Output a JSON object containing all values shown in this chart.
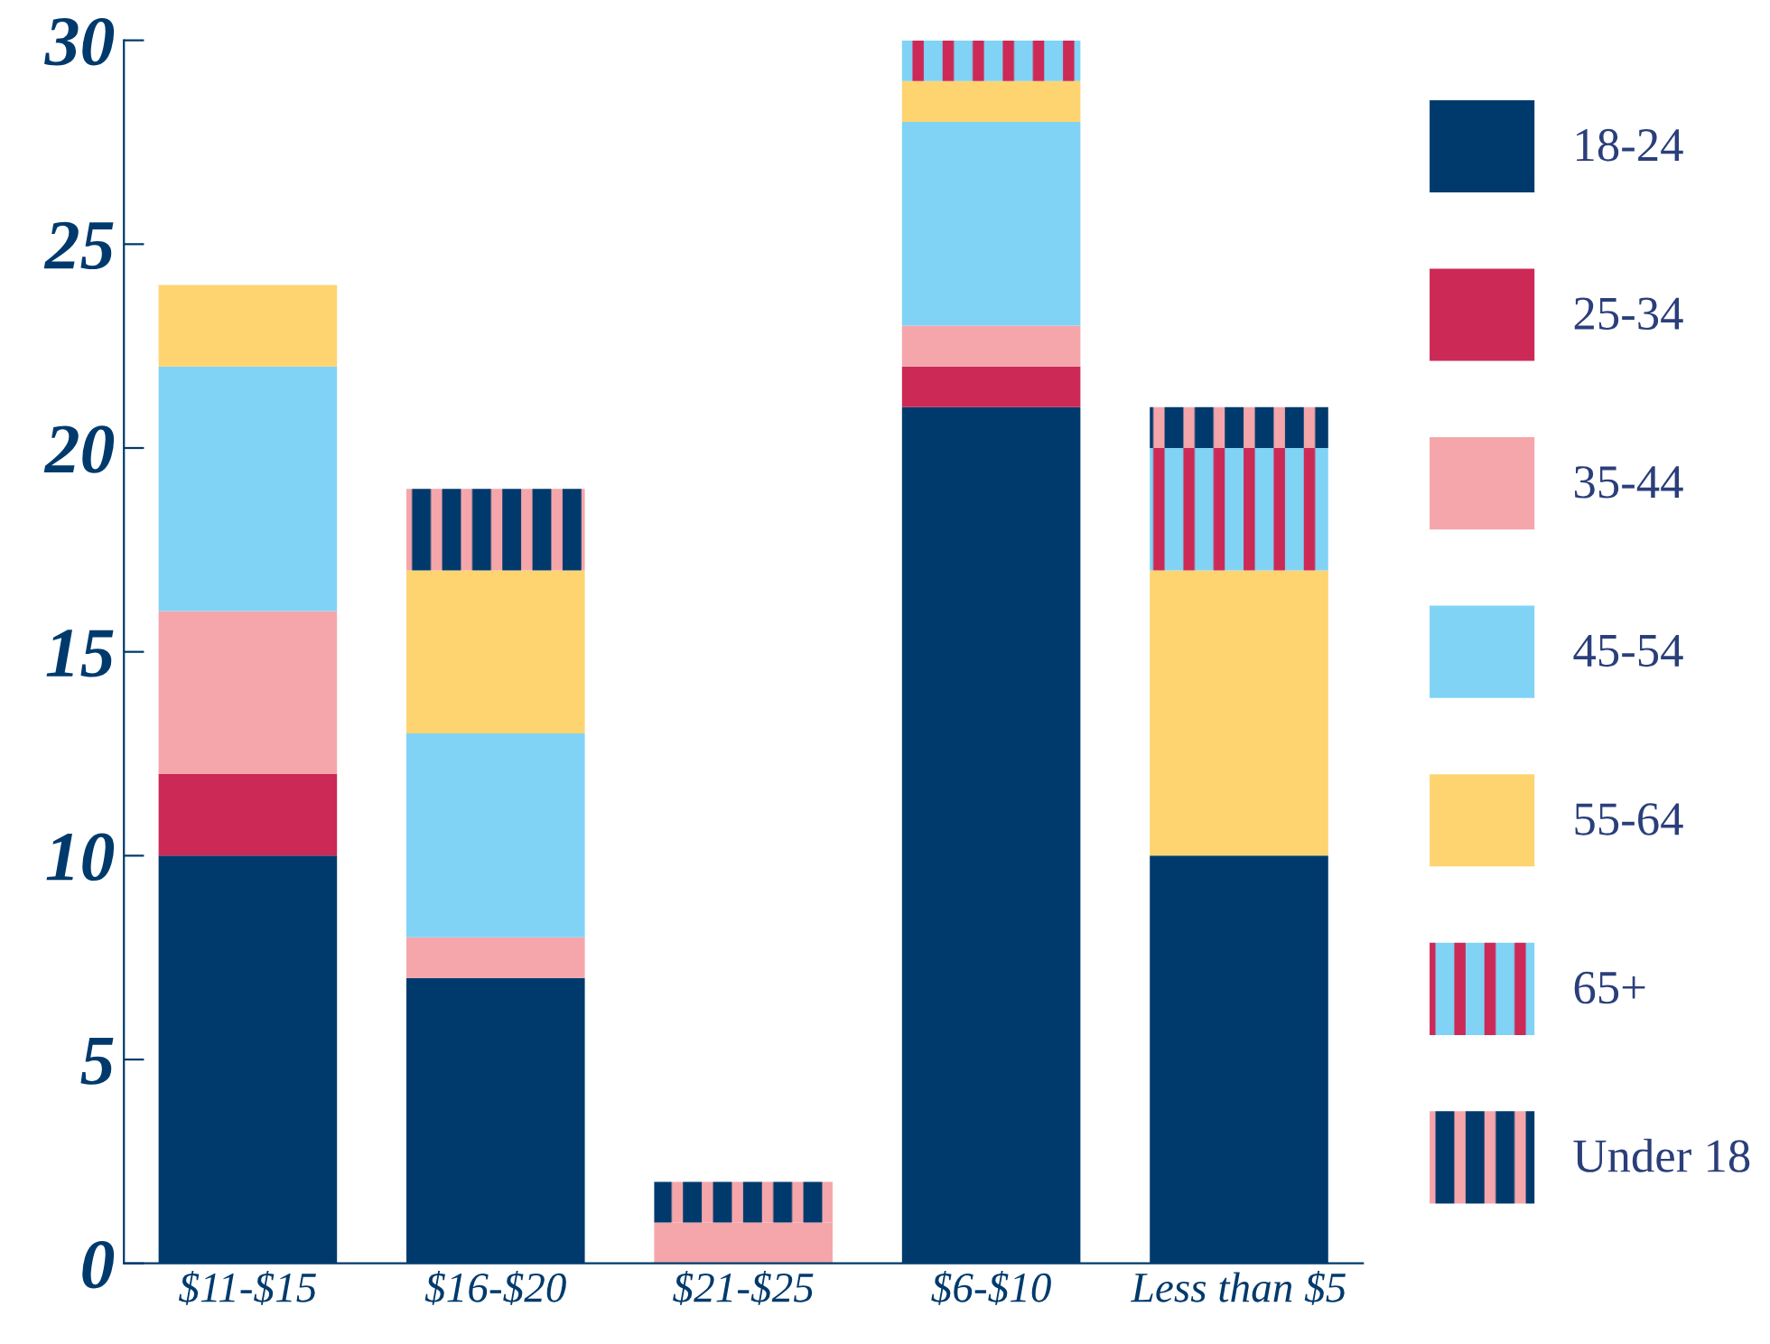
{
  "chart_data": {
    "type": "bar",
    "stacked": true,
    "categories": [
      "$11-$15",
      "$16-$20",
      "$21-$25",
      "$6-$10",
      "Less than $5"
    ],
    "series": [
      {
        "name": "18-24",
        "color": "#003a6c",
        "values": [
          10,
          7,
          null,
          21,
          10
        ]
      },
      {
        "name": "25-34",
        "color": "#cc2957",
        "values": [
          2,
          null,
          null,
          1,
          null
        ]
      },
      {
        "name": "35-44",
        "color": "#f5a6ab",
        "values": [
          4,
          1,
          1,
          1,
          null
        ]
      },
      {
        "name": "45-54",
        "color": "#80d3f5",
        "values": [
          6,
          5,
          null,
          5,
          null
        ]
      },
      {
        "name": "55-64",
        "color": "#fdd470",
        "values": [
          2,
          4,
          null,
          1,
          7
        ]
      },
      {
        "name": "65+",
        "color": "#80d3f5",
        "values": [
          null,
          null,
          null,
          1,
          3
        ]
      },
      {
        "name": "Under 18",
        "color": "#003a6c",
        "values": [
          null,
          2,
          1,
          null,
          1
        ]
      }
    ],
    "ylim": [
      0,
      30
    ],
    "yticks": [
      0,
      5,
      10,
      15,
      20,
      25,
      30
    ],
    "grid": false,
    "legend": "right"
  }
}
